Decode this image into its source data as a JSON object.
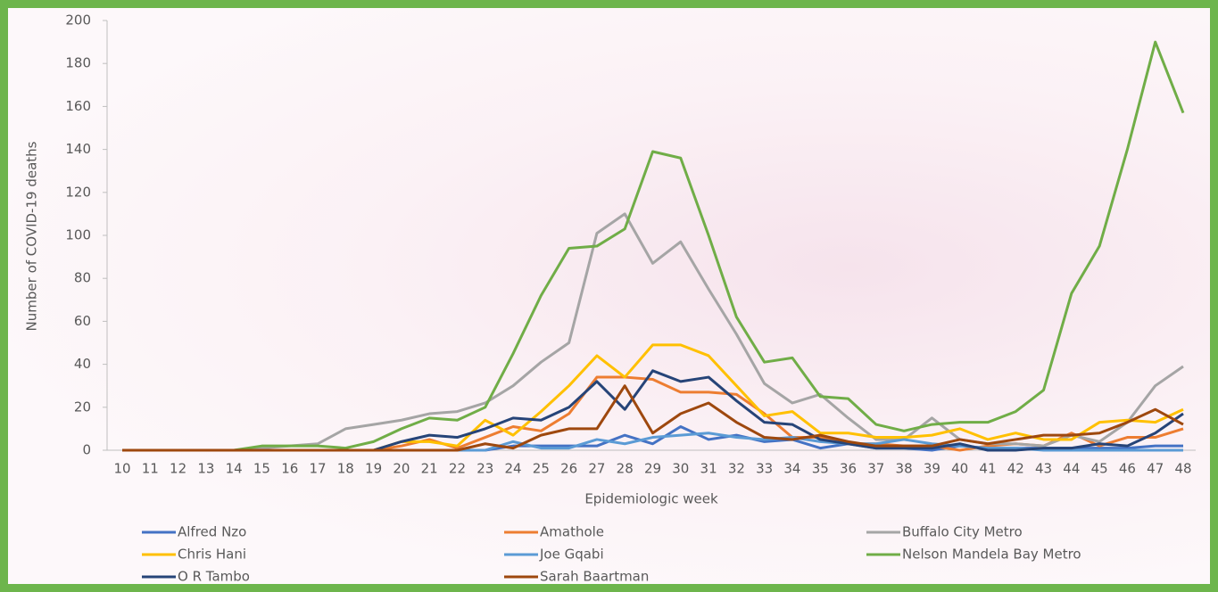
{
  "chart_data": {
    "type": "line",
    "y_label": "Number of COVID-19 deaths",
    "x_label": "Epidemiologic week",
    "categories": [
      "10",
      "11",
      "12",
      "13",
      "14",
      "15",
      "16",
      "17",
      "18",
      "19",
      "20",
      "21",
      "22",
      "23",
      "24",
      "25",
      "26",
      "27",
      "28",
      "29",
      "30",
      "31",
      "32",
      "33",
      "34",
      "35",
      "36",
      "37",
      "38",
      "39",
      "40",
      "41",
      "42",
      "43",
      "44",
      "45",
      "46",
      "47",
      "48"
    ],
    "ylim": [
      0,
      200
    ],
    "yticks": [
      0,
      20,
      40,
      60,
      80,
      100,
      120,
      140,
      160,
      180,
      200
    ],
    "grid": false,
    "legend": "bottom",
    "series": [
      {
        "name": "Alfred Nzo",
        "color": "#4472c4",
        "values": [
          0,
          0,
          0,
          0,
          0,
          0,
          0,
          0,
          0,
          0,
          0,
          0,
          0,
          0,
          2,
          2,
          2,
          2,
          7,
          3,
          11,
          5,
          7,
          4,
          5,
          1,
          3,
          1,
          1,
          0,
          2,
          1,
          1,
          1,
          1,
          1,
          1,
          2,
          2
        ]
      },
      {
        "name": "Amathole",
        "color": "#ed7d31",
        "values": [
          0,
          0,
          0,
          0,
          0,
          0,
          0,
          0,
          0,
          0,
          2,
          5,
          1,
          6,
          11,
          9,
          17,
          34,
          34,
          33,
          27,
          27,
          26,
          17,
          6,
          6,
          3,
          3,
          2,
          2,
          0,
          2,
          3,
          2,
          8,
          2,
          6,
          6,
          10
        ]
      },
      {
        "name": "Buffalo City Metro",
        "color": "#a5a5a5",
        "values": [
          0,
          0,
          0,
          0,
          0,
          1,
          2,
          3,
          10,
          12,
          14,
          17,
          18,
          22,
          30,
          41,
          50,
          101,
          110,
          87,
          97,
          75,
          54,
          31,
          22,
          26,
          15,
          5,
          5,
          15,
          5,
          3,
          3,
          2,
          7,
          4,
          13,
          30,
          39
        ]
      },
      {
        "name": "Chris Hani",
        "color": "#ffc000",
        "values": [
          0,
          0,
          0,
          0,
          0,
          0,
          0,
          0,
          0,
          0,
          4,
          4,
          2,
          14,
          7,
          18,
          30,
          44,
          34,
          49,
          49,
          44,
          30,
          16,
          18,
          8,
          8,
          6,
          6,
          7,
          10,
          5,
          8,
          5,
          5,
          13,
          14,
          13,
          19
        ]
      },
      {
        "name": "Joe Gqabi",
        "color": "#5b9bd5",
        "values": [
          0,
          0,
          0,
          0,
          0,
          0,
          0,
          0,
          0,
          0,
          0,
          0,
          0,
          0,
          4,
          1,
          1,
          5,
          3,
          6,
          7,
          8,
          6,
          5,
          6,
          4,
          3,
          3,
          5,
          3,
          2,
          1,
          1,
          0,
          0,
          0,
          0,
          0,
          0
        ]
      },
      {
        "name": "Nelson Mandela Bay Metro",
        "color": "#70ad47",
        "values": [
          0,
          0,
          0,
          0,
          0,
          2,
          2,
          2,
          1,
          4,
          10,
          15,
          14,
          20,
          45,
          72,
          94,
          95,
          103,
          139,
          136,
          100,
          62,
          41,
          43,
          25,
          24,
          12,
          9,
          12,
          13,
          13,
          18,
          28,
          73,
          95,
          140,
          190,
          157
        ]
      },
      {
        "name": "O R Tambo",
        "color": "#264478",
        "values": [
          0,
          0,
          0,
          0,
          0,
          0,
          0,
          0,
          0,
          0,
          4,
          7,
          6,
          10,
          15,
          14,
          20,
          32,
          19,
          37,
          32,
          34,
          23,
          13,
          12,
          5,
          3,
          1,
          1,
          1,
          3,
          0,
          0,
          1,
          1,
          3,
          2,
          8,
          17
        ]
      },
      {
        "name": "Sarah Baartman",
        "color": "#9e480e",
        "values": [
          0,
          0,
          0,
          0,
          0,
          0,
          0,
          0,
          0,
          0,
          0,
          0,
          0,
          3,
          1,
          7,
          10,
          10,
          30,
          8,
          17,
          22,
          13,
          6,
          5,
          7,
          4,
          2,
          2,
          2,
          5,
          3,
          5,
          7,
          7,
          8,
          13,
          19,
          12
        ]
      }
    ]
  }
}
